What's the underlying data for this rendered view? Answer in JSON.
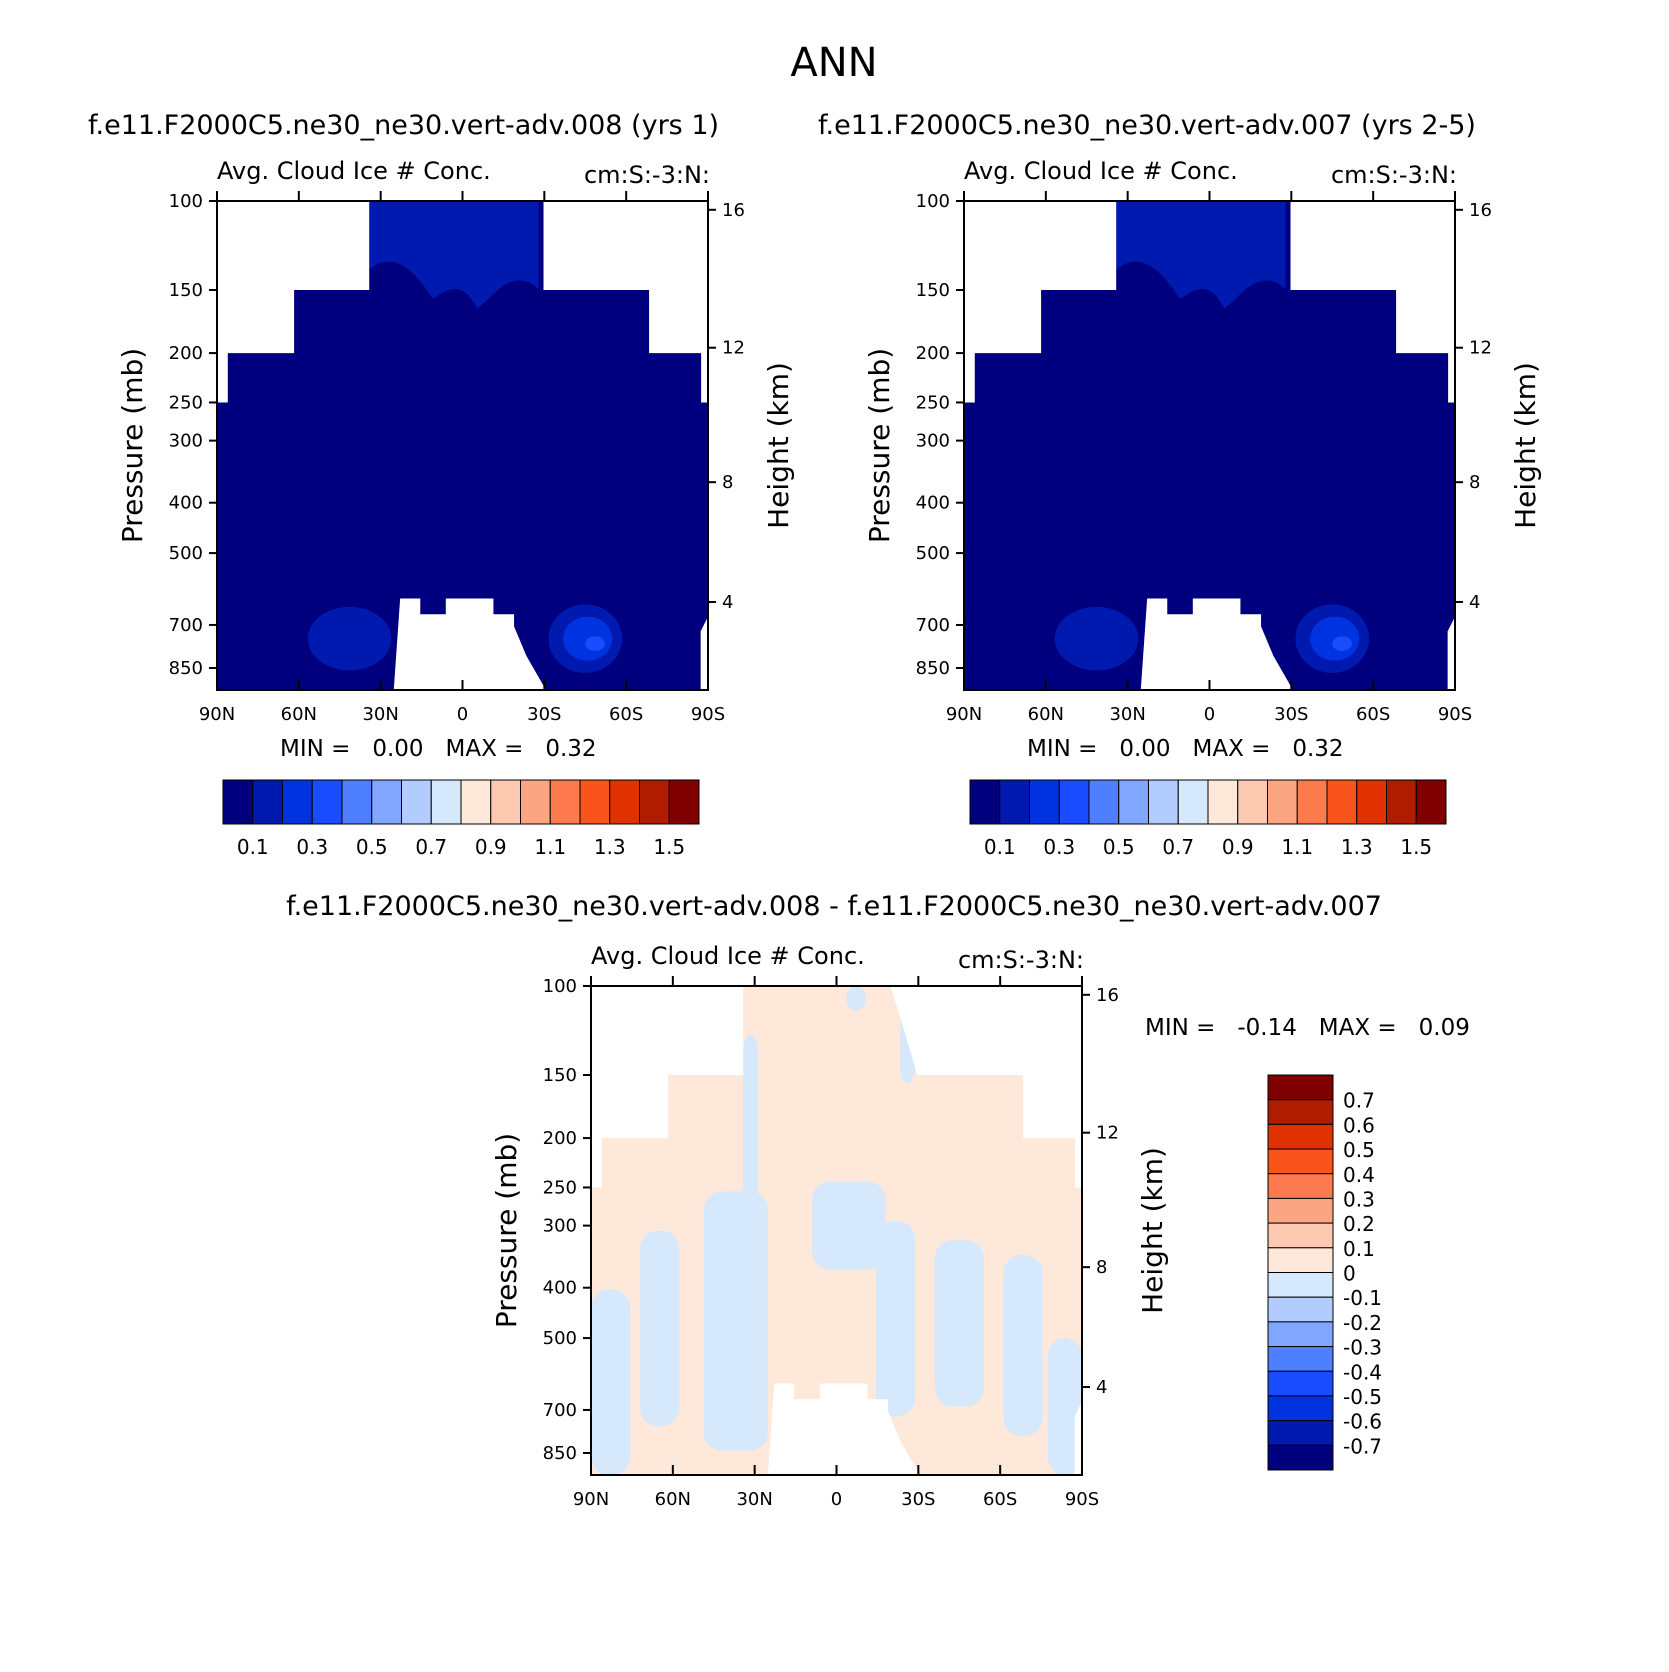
{
  "title": "ANN",
  "colors": {
    "ref_palette": [
      "#00007f",
      "#001ab0",
      "#0033e0",
      "#1a4cff",
      "#4d7fff",
      "#80a6ff",
      "#b3ccff",
      "#d6e8fb",
      "#fde8d9",
      "#fdc9b0",
      "#fca582",
      "#fc7a4d",
      "#f9541c",
      "#e03200",
      "#b01c00",
      "#800000"
    ],
    "diff_palette": [
      "#800000",
      "#b01c00",
      "#e03200",
      "#f9541c",
      "#fc7a4d",
      "#fca582",
      "#fdc9b0",
      "#fde8d9",
      "#d6e8fb",
      "#b3ccff",
      "#80a6ff",
      "#4d7fff",
      "#1a4cff",
      "#0033e0",
      "#001ab0",
      "#00007f"
    ]
  },
  "chart_data": [
    {
      "type": "heatmap",
      "panel": "left",
      "title": "f.e11.F2000C5.ne30_ne30.vert-adv.008 (yrs 1)",
      "subtitle_left": "Avg. Cloud Ice # Conc.",
      "subtitle_right": "cm:S:-3:N:",
      "xlabel": "",
      "ylabel": "Pressure (mb)",
      "y2label": "Height (km)",
      "xticks": [
        "90N",
        "60N",
        "30N",
        "0",
        "30S",
        "60S",
        "90S"
      ],
      "yticks": [
        "100",
        "150",
        "200",
        "250",
        "300",
        "400",
        "500",
        "700",
        "850"
      ],
      "y2ticks": [
        "16",
        "12",
        "8",
        "4"
      ],
      "min_label": "MIN =",
      "min_value": "0.00",
      "max_label": "MAX =",
      "max_value": "0.32",
      "colorbar_labels": [
        "0.1",
        "0.3",
        "0.5",
        "0.7",
        "0.9",
        "1.1",
        "1.3",
        "1.5"
      ],
      "colorbar_orientation": "horizontal"
    },
    {
      "type": "heatmap",
      "panel": "right",
      "title": "f.e11.F2000C5.ne30_ne30.vert-adv.007 (yrs 2-5)",
      "subtitle_left": "Avg. Cloud Ice # Conc.",
      "subtitle_right": "cm:S:-3:N:",
      "xlabel": "",
      "ylabel": "Pressure (mb)",
      "y2label": "Height (km)",
      "xticks": [
        "90N",
        "60N",
        "30N",
        "0",
        "30S",
        "60S",
        "90S"
      ],
      "yticks": [
        "100",
        "150",
        "200",
        "250",
        "300",
        "400",
        "500",
        "700",
        "850"
      ],
      "y2ticks": [
        "16",
        "12",
        "8",
        "4"
      ],
      "min_label": "MIN =",
      "min_value": "0.00",
      "max_label": "MAX =",
      "max_value": "0.32",
      "colorbar_labels": [
        "0.1",
        "0.3",
        "0.5",
        "0.7",
        "0.9",
        "1.1",
        "1.3",
        "1.5"
      ],
      "colorbar_orientation": "horizontal"
    },
    {
      "type": "heatmap",
      "panel": "difference",
      "title": "f.e11.F2000C5.ne30_ne30.vert-adv.008 - f.e11.F2000C5.ne30_ne30.vert-adv.007",
      "subtitle_left": "Avg. Cloud Ice # Conc.",
      "subtitle_right": "cm:S:-3:N:",
      "xlabel": "",
      "ylabel": "Pressure (mb)",
      "y2label": "Height (km)",
      "xticks": [
        "90N",
        "60N",
        "30N",
        "0",
        "30S",
        "60S",
        "90S"
      ],
      "yticks": [
        "100",
        "150",
        "200",
        "250",
        "300",
        "400",
        "500",
        "700",
        "850"
      ],
      "y2ticks": [
        "16",
        "12",
        "8",
        "4"
      ],
      "min_label": "MIN =",
      "min_value": "-0.14",
      "max_label": "MAX =",
      "max_value": "0.09",
      "colorbar_labels": [
        "0.7",
        "0.6",
        "0.5",
        "0.4",
        "0.3",
        "0.2",
        "0.1",
        "0",
        "-0.1",
        "-0.2",
        "-0.3",
        "-0.4",
        "-0.5",
        "-0.6",
        "-0.7"
      ],
      "colorbar_orientation": "vertical"
    }
  ]
}
